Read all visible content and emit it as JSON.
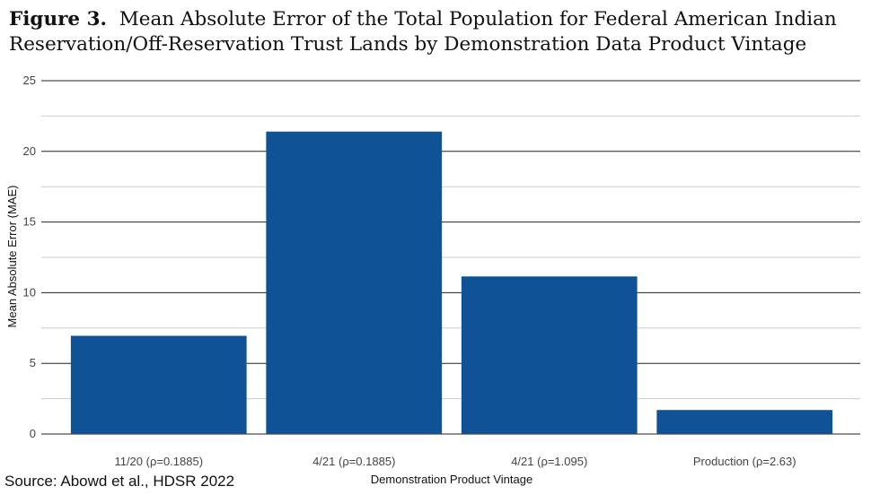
{
  "title": {
    "figure_label": "Figure 3.",
    "line1": "Mean Absolute Error of the Total Population for Federal American Indian",
    "line2": "Reservation/Off-Reservation Trust Lands by Demonstration Data Product Vintage"
  },
  "source": "Source: Abowd et al., HDSR 2022",
  "colors": {
    "bar": "#0f5296",
    "grid_major": "#222222",
    "grid_minor": "#cccccc"
  },
  "chart_data": {
    "type": "bar",
    "categories": [
      "11/20 (ρ=0.1885)",
      "4/21 (ρ=0.1885)",
      "4/21 (ρ=1.095)",
      "Production (ρ=2.63)"
    ],
    "values": [
      6.95,
      21.4,
      11.15,
      1.7
    ],
    "xlabel": "Demonstration Product Vintage",
    "ylabel": "Mean Absolute Error (MAE)",
    "ylim": [
      0,
      25
    ],
    "yticks": [
      "0",
      "5",
      "10",
      "15",
      "20",
      "25"
    ],
    "grid": true,
    "legend": "none"
  }
}
